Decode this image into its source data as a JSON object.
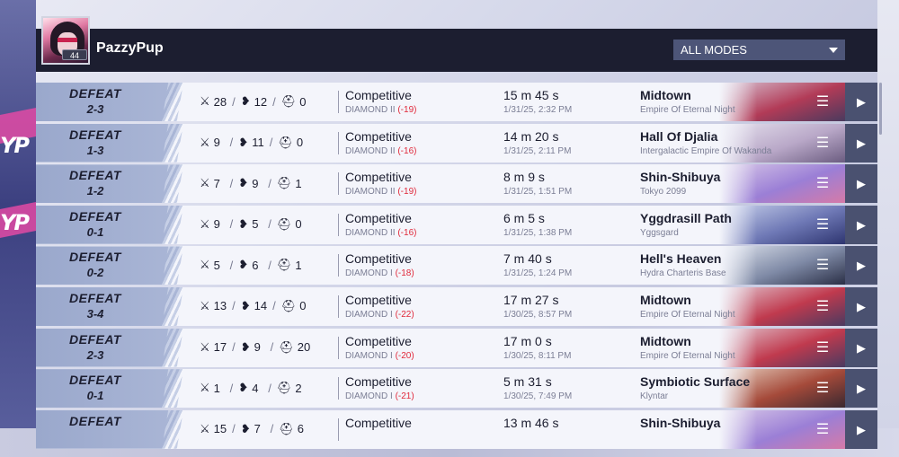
{
  "player": {
    "username": "PazzyPup",
    "level": "44"
  },
  "filter": {
    "selected": "ALL MODES"
  },
  "side_text": [
    "YP",
    "YP"
  ],
  "matches": [
    {
      "result": "DEFEAT",
      "score": "2-3",
      "kills": "28",
      "deaths": "12",
      "assists": "0",
      "mode": "Competitive",
      "rank": "DIAMOND II",
      "delta": "(-19)",
      "duration": "15 m 45 s",
      "date": "1/31/25, 2:32 PM",
      "map": "Midtown",
      "region": "Empire Of Eternal Night",
      "art": [
        "#d8c6d6",
        "#b23b57",
        "#4a3a5e"
      ]
    },
    {
      "result": "DEFEAT",
      "score": "1-3",
      "kills": "9",
      "deaths": "11",
      "assists": "0",
      "mode": "Competitive",
      "rank": "DIAMOND II",
      "delta": "(-16)",
      "duration": "14 m 20 s",
      "date": "1/31/25, 2:11 PM",
      "map": "Hall Of Djalia",
      "region": "Intergalactic Empire Of Wakanda",
      "art": [
        "#e6e2ee",
        "#b9a8c8",
        "#6b5c80"
      ]
    },
    {
      "result": "DEFEAT",
      "score": "1-2",
      "kills": "7",
      "deaths": "9",
      "assists": "1",
      "mode": "Competitive",
      "rank": "DIAMOND II",
      "delta": "(-19)",
      "duration": "8 m 9 s",
      "date": "1/31/25, 1:51 PM",
      "map": "Shin-Shibuya",
      "region": "Tokyo 2099",
      "art": [
        "#d9c9e8",
        "#9b7fd6",
        "#d57aa8"
      ]
    },
    {
      "result": "DEFEAT",
      "score": "0-1",
      "kills": "9",
      "deaths": "5",
      "assists": "0",
      "mode": "Competitive",
      "rank": "DIAMOND II",
      "delta": "(-16)",
      "duration": "6 m 5 s",
      "date": "1/31/25, 1:38 PM",
      "map": "Yggdrasill Path",
      "region": "Yggsgard",
      "art": [
        "#c9d2ec",
        "#6f79b6",
        "#2e3570"
      ]
    },
    {
      "result": "DEFEAT",
      "score": "0-2",
      "kills": "5",
      "deaths": "6",
      "assists": "1",
      "mode": "Competitive",
      "rank": "DIAMOND I",
      "delta": "(-18)",
      "duration": "7 m 40 s",
      "date": "1/31/25, 1:24 PM",
      "map": "Hell's Heaven",
      "region": "Hydra Charteris Base",
      "art": [
        "#dfe4ee",
        "#7f8aa6",
        "#2a2f46"
      ]
    },
    {
      "result": "DEFEAT",
      "score": "3-4",
      "kills": "13",
      "deaths": "14",
      "assists": "0",
      "mode": "Competitive",
      "rank": "DIAMOND I",
      "delta": "(-22)",
      "duration": "17 m 27 s",
      "date": "1/30/25, 8:57 PM",
      "map": "Midtown",
      "region": "Empire Of Eternal Night",
      "art": [
        "#e2c8d2",
        "#c03a4e",
        "#4b3a60"
      ]
    },
    {
      "result": "DEFEAT",
      "score": "2-3",
      "kills": "17",
      "deaths": "9",
      "assists": "20",
      "mode": "Competitive",
      "rank": "DIAMOND I",
      "delta": "(-20)",
      "duration": "17 m 0 s",
      "date": "1/30/25, 8:11 PM",
      "map": "Midtown",
      "region": "Empire Of Eternal Night",
      "art": [
        "#e2c8d2",
        "#c03a4e",
        "#4b3a60"
      ]
    },
    {
      "result": "DEFEAT",
      "score": "0-1",
      "kills": "1",
      "deaths": "4",
      "assists": "2",
      "mode": "Competitive",
      "rank": "DIAMOND I",
      "delta": "(-21)",
      "duration": "5 m 31 s",
      "date": "1/30/25, 7:49 PM",
      "map": "Symbiotic Surface",
      "region": "Klyntar",
      "art": [
        "#e8d2c2",
        "#a54a3a",
        "#3a2830"
      ]
    },
    {
      "result": "DEFEAT",
      "score": "",
      "kills": "15",
      "deaths": "7",
      "assists": "6",
      "mode": "Competitive",
      "rank": "",
      "delta": "",
      "duration": "13 m 46 s",
      "date": "",
      "map": "Shin-Shibuya",
      "region": "",
      "art": [
        "#d9c9e8",
        "#9b7fd6",
        "#d57aa8"
      ]
    }
  ],
  "icons": {
    "kills": "crossed-swords-icon",
    "deaths": "broken-heart-icon",
    "assists": "helmet-icon",
    "menu": "menu-lines-icon",
    "play": "play-icon"
  }
}
